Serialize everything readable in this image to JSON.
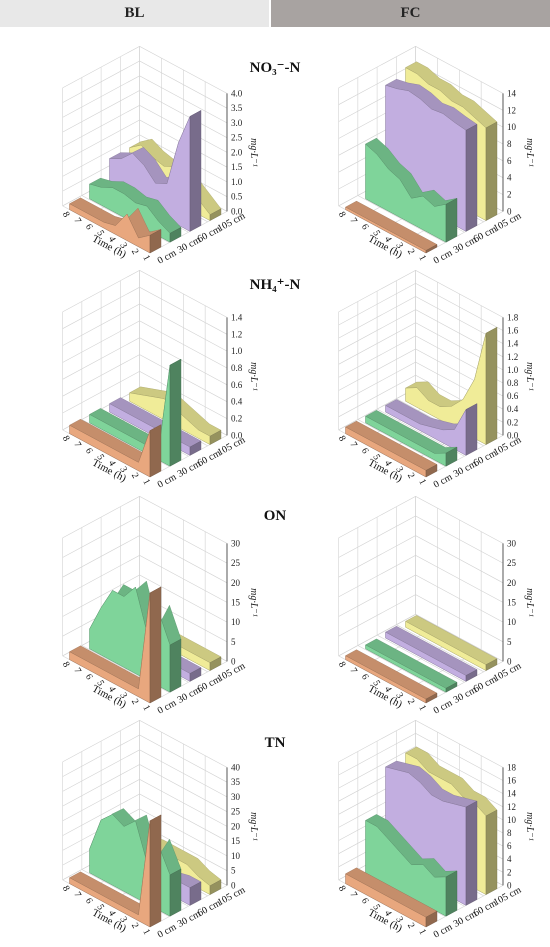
{
  "headers": {
    "left": "BL",
    "right": "FC"
  },
  "rows": [
    {
      "title": "NO₃⁻-N"
    },
    {
      "title": "NH₄⁺-N"
    },
    {
      "title": "ON"
    },
    {
      "title": "TN"
    }
  ],
  "axis_labels": {
    "time": "Time (h)",
    "unit": "mg·L⁻¹",
    "depths": [
      "0 cm",
      "30 cm",
      "60 cm",
      "105 cm"
    ],
    "time_ticks": [
      "1",
      "2",
      "3",
      "4",
      "5",
      "6",
      "7",
      "8"
    ]
  },
  "colors": {
    "d0": "#e8a77e",
    "d30": "#7fd49a",
    "d60": "#c2aee0",
    "d105": "#f0ec98"
  },
  "chart_data": [
    {
      "type": "area",
      "panel": "BL",
      "title": "NO₃⁻-N",
      "zlim": [
        0,
        4
      ],
      "zticks": [
        "0.0",
        "0.5",
        "1.0",
        "1.5",
        "2.0",
        "2.5",
        "3.0",
        "3.5",
        "4.0"
      ],
      "series": [
        {
          "name": "0 cm",
          "values": [
            0.6,
            0.3,
            0.9,
            0.3,
            0.2,
            0.2,
            0.2,
            0.2
          ]
        },
        {
          "name": "30 cm",
          "values": [
            0.3,
            0.5,
            0.8,
            0.7,
            0.8,
            0.8,
            0.6,
            0.5
          ]
        },
        {
          "name": "60 cm",
          "values": [
            3.9,
            2.8,
            1.2,
            1.0,
            1.4,
            1.6,
            1.2,
            1.0
          ]
        },
        {
          "name": "105 cm",
          "values": [
            0.2,
            0.5,
            0.8,
            1.2,
            1.0,
            1.1,
            1.3,
            1.0
          ]
        }
      ]
    },
    {
      "type": "area",
      "panel": "FC",
      "title": "NO₃⁻-N",
      "zlim": [
        0,
        14
      ],
      "zticks": [
        "0",
        "2",
        "4",
        "6",
        "8",
        "10",
        "12",
        "14"
      ],
      "series": [
        {
          "name": "0 cm",
          "values": [
            0.3,
            0.3,
            0.3,
            0.3,
            0.3,
            0.3,
            0.3,
            0.3
          ]
        },
        {
          "name": "30 cm",
          "values": [
            4.5,
            3.5,
            4.0,
            3.0,
            4.5,
            5.0,
            6.0,
            6.5
          ]
        },
        {
          "name": "60 cm",
          "values": [
            12.0,
            12.2,
            12.5,
            12.3,
            12.8,
            13.0,
            12.5,
            12.2
          ]
        },
        {
          "name": "105 cm",
          "values": [
            11.0,
            11.5,
            12.0,
            12.0,
            12.5,
            12.5,
            13.0,
            13.0
          ]
        }
      ]
    },
    {
      "type": "area",
      "panel": "BL",
      "title": "NH₄⁺-N",
      "zlim": [
        0,
        1.4
      ],
      "zticks": [
        "0.0",
        "0.2",
        "0.4",
        "0.6",
        "0.8",
        "1.0",
        "1.2",
        "1.4"
      ],
      "series": [
        {
          "name": "0 cm",
          "values": [
            0.55,
            0.1,
            0.1,
            0.1,
            0.1,
            0.1,
            0.1,
            0.1
          ]
        },
        {
          "name": "30 cm",
          "values": [
            1.2,
            0.1,
            0.1,
            0.1,
            0.1,
            0.1,
            0.1,
            0.1
          ]
        },
        {
          "name": "60 cm",
          "values": [
            0.1,
            0.1,
            0.1,
            0.1,
            0.1,
            0.1,
            0.1,
            0.1
          ]
        },
        {
          "name": "105 cm",
          "values": [
            0.1,
            0.1,
            0.15,
            0.2,
            0.25,
            0.2,
            0.15,
            0.1
          ]
        }
      ]
    },
    {
      "type": "area",
      "panel": "FC",
      "title": "NH₄⁺-N",
      "zlim": [
        0,
        1.8
      ],
      "zticks": [
        "0.0",
        "0.2",
        "0.4",
        "0.6",
        "0.8",
        "1.0",
        "1.2",
        "1.4",
        "1.6",
        "1.8"
      ],
      "series": [
        {
          "name": "0 cm",
          "values": [
            0.1,
            0.1,
            0.1,
            0.1,
            0.1,
            0.1,
            0.1,
            0.1
          ]
        },
        {
          "name": "30 cm",
          "values": [
            0.2,
            0.1,
            0.1,
            0.1,
            0.1,
            0.1,
            0.1,
            0.1
          ]
        },
        {
          "name": "60 cm",
          "values": [
            0.7,
            0.3,
            0.2,
            0.15,
            0.1,
            0.1,
            0.1,
            0.1
          ]
        },
        {
          "name": "105 cm",
          "values": [
            1.7,
            0.9,
            0.5,
            0.3,
            0.2,
            0.2,
            0.3,
            0.2
          ]
        }
      ]
    },
    {
      "type": "area",
      "panel": "BL",
      "title": "ON",
      "zlim": [
        0,
        30
      ],
      "zticks": [
        "0",
        "5",
        "10",
        "15",
        "20",
        "25",
        "30"
      ],
      "series": [
        {
          "name": "0 cm",
          "values": [
            28,
            2,
            2,
            2,
            2,
            2,
            2,
            2
          ]
        },
        {
          "name": "30 cm",
          "values": [
            12,
            19,
            12,
            22,
            18,
            18,
            12,
            5
          ]
        },
        {
          "name": "60 cm",
          "values": [
            2,
            2,
            2,
            2,
            2,
            2,
            2,
            2
          ]
        },
        {
          "name": "105 cm",
          "values": [
            2,
            2,
            2,
            2,
            2,
            2,
            2,
            2
          ]
        }
      ]
    },
    {
      "type": "area",
      "panel": "FC",
      "title": "ON",
      "zlim": [
        0,
        30
      ],
      "zticks": [
        "0",
        "5",
        "10",
        "15",
        "20",
        "25",
        "30"
      ],
      "series": [
        {
          "name": "0 cm",
          "values": [
            1,
            1,
            1,
            1,
            1,
            1,
            1,
            1
          ]
        },
        {
          "name": "30 cm",
          "values": [
            1,
            1,
            1,
            1,
            1,
            1,
            1,
            1
          ]
        },
        {
          "name": "60 cm",
          "values": [
            1.5,
            1.5,
            1.5,
            1.5,
            1.5,
            1.5,
            1.5,
            1.5
          ]
        },
        {
          "name": "105 cm",
          "values": [
            1.5,
            1.5,
            1.5,
            1.5,
            1.5,
            1.5,
            1.5,
            1.5
          ]
        }
      ]
    },
    {
      "type": "area",
      "panel": "BL",
      "title": "TN",
      "zlim": [
        0,
        40
      ],
      "zticks": [
        "0",
        "5",
        "10",
        "15",
        "20",
        "25",
        "30",
        "35",
        "40"
      ],
      "series": [
        {
          "name": "0 cm",
          "values": [
            36,
            2,
            2,
            2,
            2,
            2,
            2,
            2
          ]
        },
        {
          "name": "30 cm",
          "values": [
            14,
            22,
            14,
            26,
            22,
            24,
            20,
            8
          ]
        },
        {
          "name": "60 cm",
          "values": [
            6,
            6,
            5,
            5,
            5,
            6,
            6,
            6
          ]
        },
        {
          "name": "105 cm",
          "values": [
            3,
            4,
            6,
            6,
            6,
            6,
            5,
            4
          ]
        }
      ]
    },
    {
      "type": "area",
      "panel": "FC",
      "title": "TN",
      "zlim": [
        0,
        18
      ],
      "zticks": [
        "0",
        "2",
        "4",
        "6",
        "8",
        "10",
        "12",
        "14",
        "16",
        "18"
      ],
      "series": [
        {
          "name": "0 cm",
          "values": [
            1.5,
            1.5,
            1.5,
            1.5,
            1.5,
            1.5,
            1.5,
            1.5
          ]
        },
        {
          "name": "30 cm",
          "values": [
            6,
            5,
            6,
            5,
            6,
            7,
            8,
            8
          ]
        },
        {
          "name": "60 cm",
          "values": [
            15,
            14.5,
            14,
            14,
            15,
            15.5,
            15,
            14.5
          ]
        },
        {
          "name": "105 cm",
          "values": [
            12,
            13,
            13,
            14,
            14,
            14,
            15,
            15
          ]
        }
      ]
    }
  ]
}
